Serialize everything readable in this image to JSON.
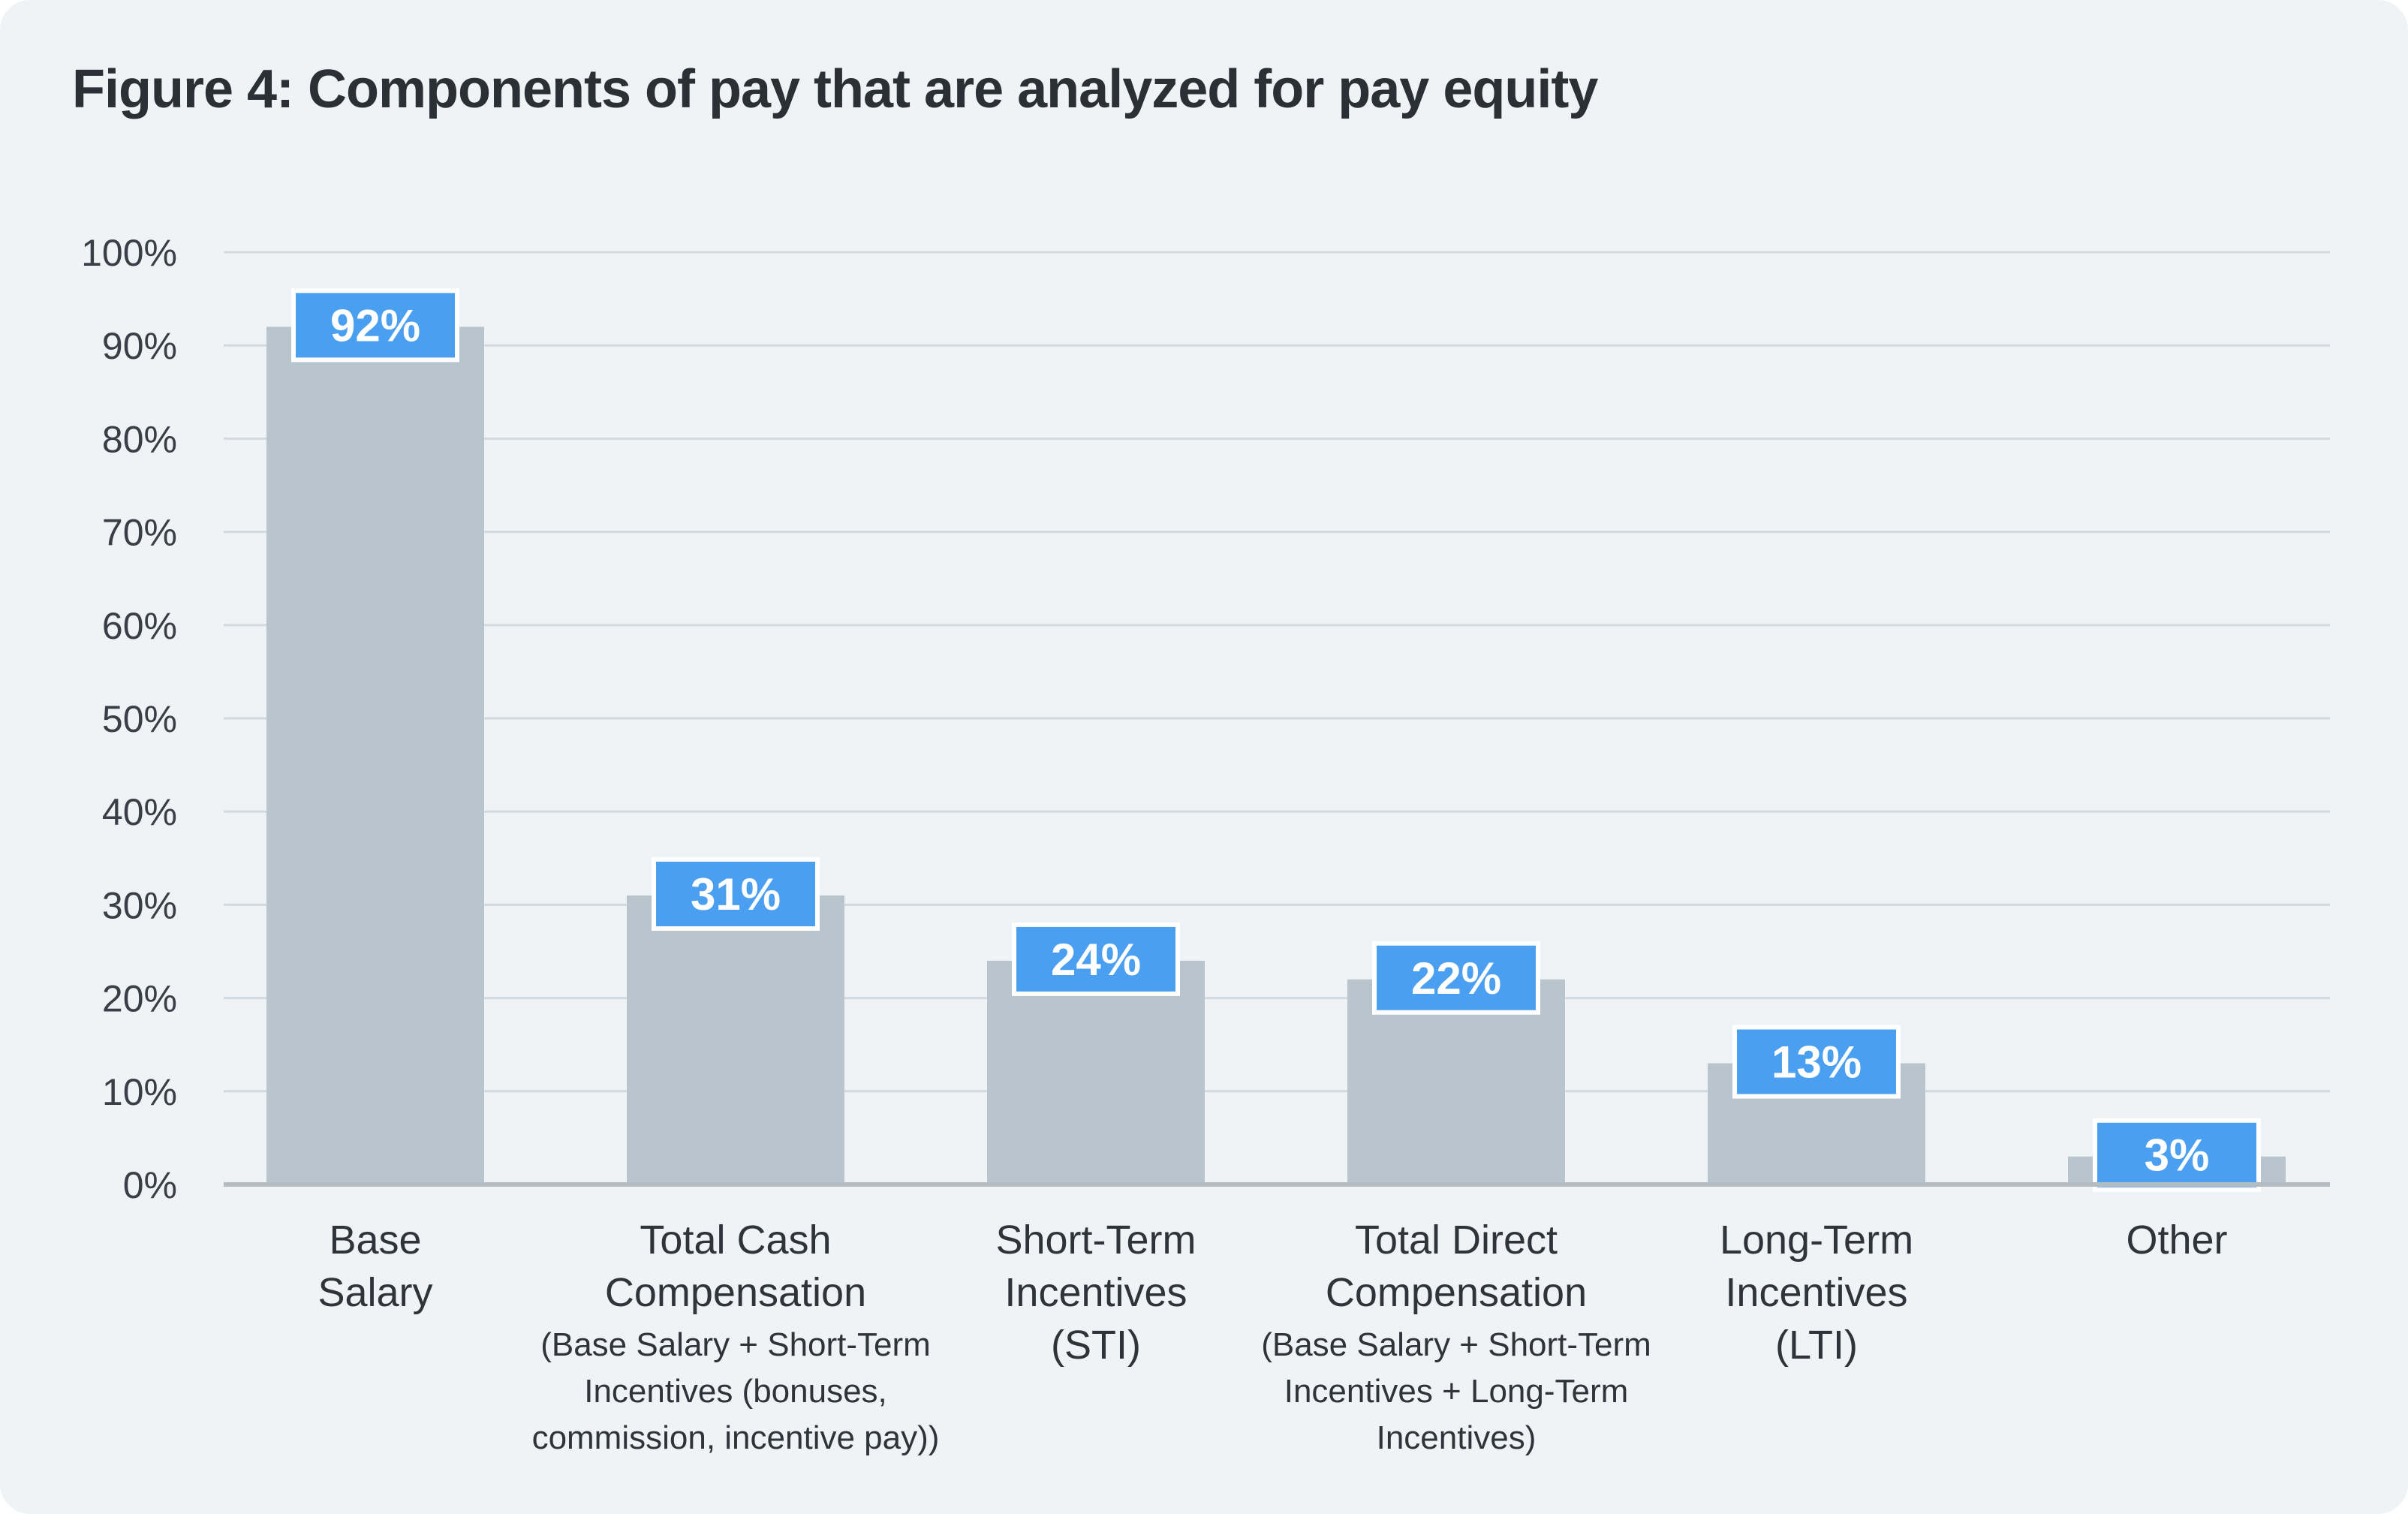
{
  "title": "Figure 4: Components of pay that are analyzed for pay equity",
  "colors": {
    "background": "#eff3f5",
    "bar": "#b8c5cd",
    "label_box": "#4a9ff0",
    "label_border": "#ffffff",
    "grid": "#d3dadf",
    "axis": "#b3bcc3"
  },
  "chart_data": {
    "type": "bar",
    "title": "Figure 4: Components of pay that are analyzed for pay equity",
    "xlabel": "",
    "ylabel": "",
    "ylim": [
      0,
      100
    ],
    "yticks": [
      0,
      10,
      20,
      30,
      40,
      50,
      60,
      70,
      80,
      90,
      100
    ],
    "ytick_labels": [
      "0%",
      "10%",
      "20%",
      "30%",
      "40%",
      "50%",
      "60%",
      "70%",
      "80%",
      "90%",
      "100%"
    ],
    "grid": true,
    "legend": "none",
    "categories": [
      "Base Salary",
      "Total Cash Compensation",
      "Short-Term Incentives (STI)",
      "Total Direct Compensation",
      "Long-Term Incentives (LTI)",
      "Other"
    ],
    "category_lines": [
      {
        "main": [
          "Base",
          "Salary"
        ],
        "sub": []
      },
      {
        "main": [
          "Total Cash",
          "Compensation"
        ],
        "sub": [
          "(Base Salary + Short-Term",
          "Incentives (bonuses,",
          "commission, incentive pay))"
        ]
      },
      {
        "main": [
          "Short-Term",
          "Incentives",
          "(STI)"
        ],
        "sub": []
      },
      {
        "main": [
          "Total Direct",
          "Compensation"
        ],
        "sub": [
          "(Base Salary + Short-Term",
          "Incentives + Long-Term",
          "Incentives)"
        ]
      },
      {
        "main": [
          "Long-Term",
          "Incentives",
          "(LTI)"
        ],
        "sub": []
      },
      {
        "main": [
          "Other"
        ],
        "sub": []
      }
    ],
    "values": [
      92,
      31,
      24,
      22,
      13,
      3
    ],
    "value_labels": [
      "92%",
      "31%",
      "24%",
      "22%",
      "13%",
      "3%"
    ]
  }
}
